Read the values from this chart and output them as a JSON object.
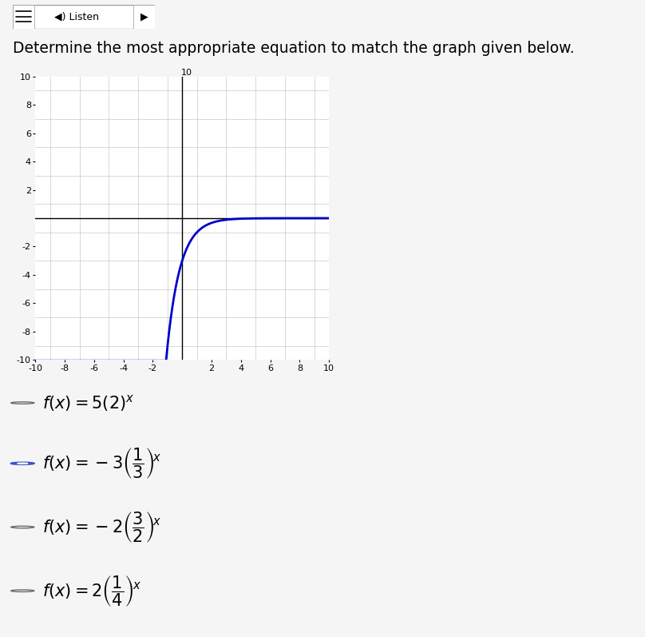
{
  "title": "Determine the most appropriate equation to match the graph given below.",
  "xlim": [
    -10,
    10
  ],
  "ylim": [
    -10,
    10
  ],
  "xticks": [
    -10,
    -8,
    -6,
    -4,
    -2,
    2,
    4,
    6,
    8,
    10
  ],
  "yticks": [
    -10,
    -8,
    -6,
    -4,
    -2,
    2,
    4,
    6,
    8,
    10
  ],
  "curve_color": "#0000cc",
  "curve_linewidth": 2.0,
  "grid_color": "#bbbbbb",
  "graph_bg": "#ffffff",
  "page_bg": "#f5f5f5",
  "selected_bg": "#e0e0e0",
  "unselected_bg": "#f5f5f5",
  "func_a": -3.0,
  "func_b": 0.3333333333333333,
  "selected_index": 1,
  "option_labels": [
    "f(x) = 5(2)^x",
    "f(x) = -3(1/3)^x",
    "f(x) = -2(3/2)^x",
    "f(x) = 2(1/4)^x"
  ],
  "listen_bar_color": "#ffffff",
  "listen_border_color": "#999999",
  "radio_selected_color": "#3355cc",
  "radio_unselected_edge": "#666666",
  "title_fontsize": 13.5,
  "axis_tick_fontsize": 8,
  "option_fontsize": 15
}
